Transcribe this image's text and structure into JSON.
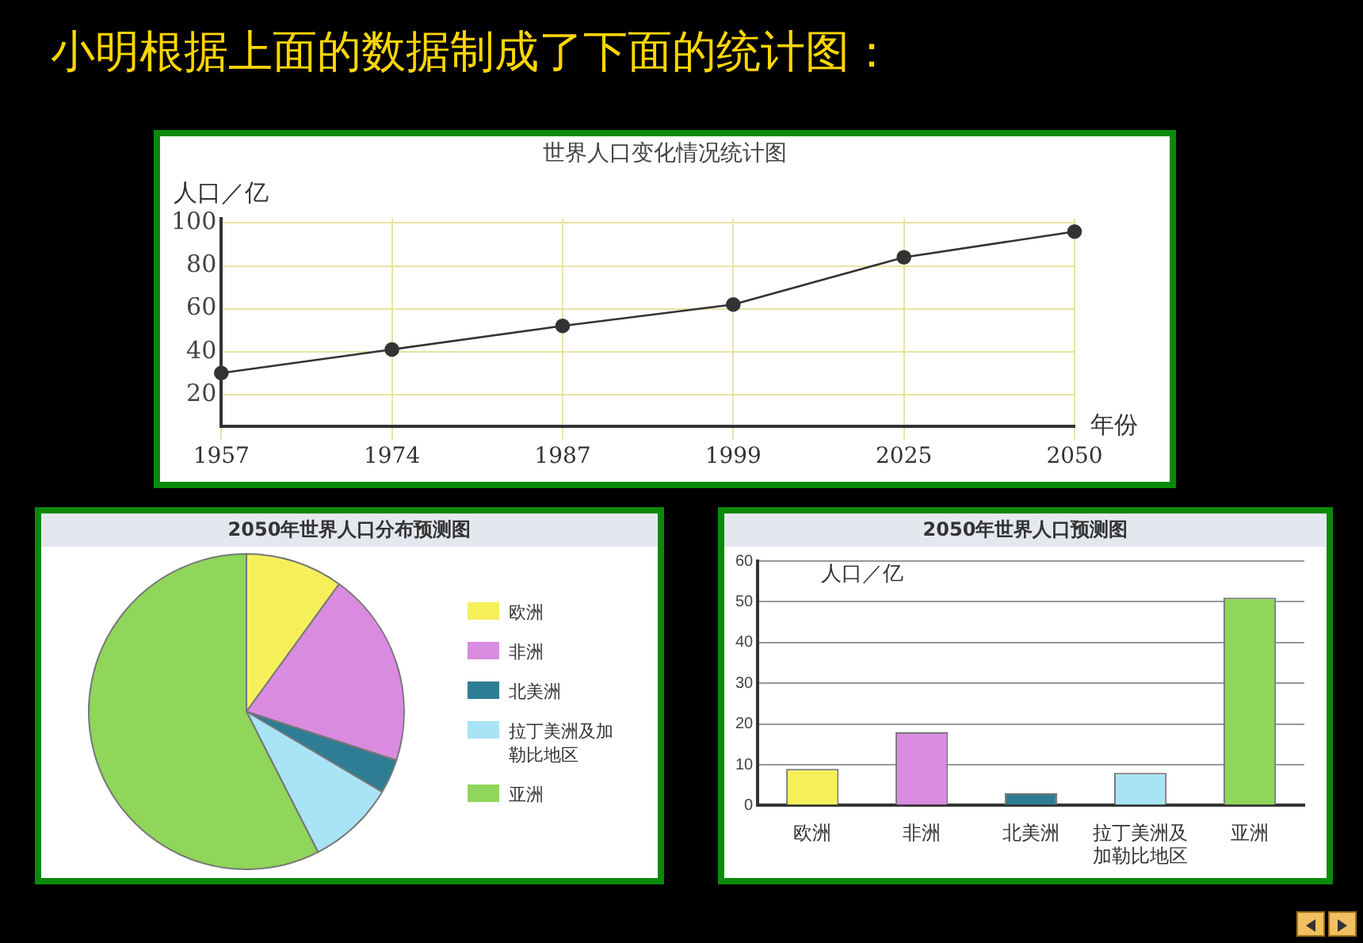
{
  "chart_data": [
    {
      "type": "line",
      "title": "世界人口变化情况统计图",
      "ylabel": "人口／亿",
      "xlabel": "年份",
      "annotations": [
        "小明根据上面的数据制成了下面的统计图："
      ],
      "categories": [
        "1957",
        "1974",
        "1987",
        "1999",
        "2025",
        "2050"
      ],
      "series": [
        {
          "color": "#333333",
          "values": [
            30,
            41,
            52,
            62,
            84,
            96
          ]
        }
      ],
      "ylim": [
        5,
        102
      ],
      "yticks": [
        20,
        40,
        60,
        80,
        100
      ],
      "grid": true,
      "marker": "circle",
      "line_style": "solid",
      "legend": false
    },
    {
      "type": "pie",
      "title": "2050年世界人口分布预测图",
      "categories": [
        "欧洲",
        "非洲",
        "北美洲",
        "拉丁美洲及加勒比地区",
        "亚洲"
      ],
      "values": [
        10,
        20,
        3.5,
        9,
        57.5
      ],
      "colors": [
        "#f5f05a",
        "#d98be0",
        "#2e7d95",
        "#a8e4f5",
        "#8fd65a"
      ],
      "legend": "right"
    },
    {
      "type": "bar",
      "title": "2050年世界人口预测图",
      "ylabel": "人口／亿",
      "categories": [
        "欧洲",
        "非洲",
        "北美洲",
        "拉丁美洲及加勒比地区",
        "亚洲"
      ],
      "values": [
        9,
        18,
        3,
        8,
        51
      ],
      "colors": [
        "#f5f05a",
        "#d98be0",
        "#2e7d95",
        "#a8e4f5",
        "#8fd65a"
      ],
      "ylim": [
        0,
        60
      ],
      "yticks": [
        0,
        10,
        20,
        30,
        40,
        50,
        60
      ],
      "grid": "y",
      "legend": false
    }
  ]
}
